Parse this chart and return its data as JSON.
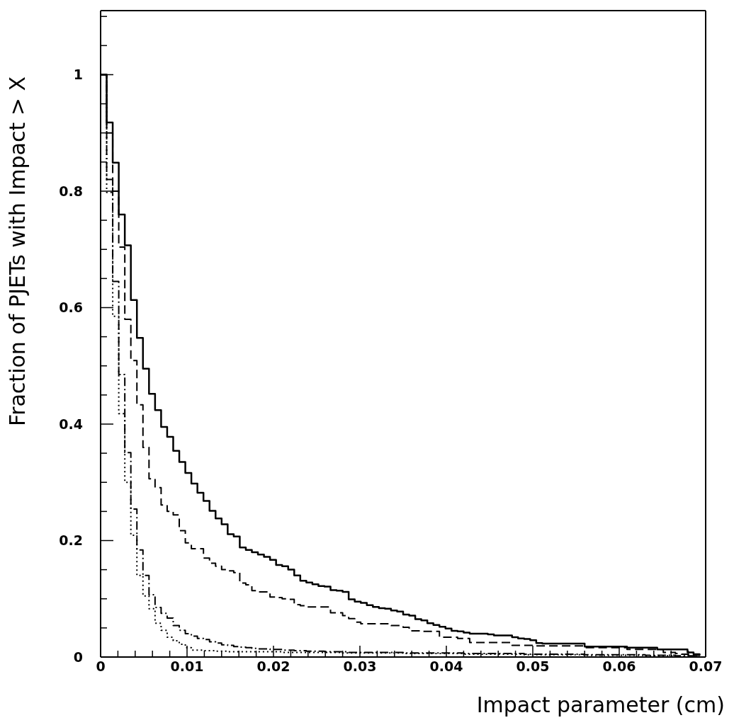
{
  "chart_data": {
    "type": "step",
    "xlabel": "Impact parameter (cm)",
    "ylabel": "Fraction of PJETs with Impact > X",
    "xlim": [
      0,
      0.07
    ],
    "ylim": [
      0,
      1.11
    ],
    "xticks": [
      0,
      {
        "value": 0.002,
        "label": null
      },
      {
        "value": 0.004,
        "label": null
      },
      {
        "value": 0.006,
        "label": null
      },
      {
        "value": 0.008,
        "label": null
      },
      0.01,
      {
        "value": 0.012,
        "label": null
      },
      {
        "value": 0.014,
        "label": null
      },
      {
        "value": 0.016,
        "label": null
      },
      {
        "value": 0.018,
        "label": null
      },
      0.02,
      {
        "value": 0.022,
        "label": null
      },
      {
        "value": 0.024,
        "label": null
      },
      {
        "value": 0.026,
        "label": null
      },
      {
        "value": 0.028,
        "label": null
      },
      0.03,
      {
        "value": 0.032,
        "label": null
      },
      {
        "value": 0.034,
        "label": null
      },
      {
        "value": 0.036,
        "label": null
      },
      {
        "value": 0.038,
        "label": null
      },
      0.04,
      {
        "value": 0.042,
        "label": null
      },
      {
        "value": 0.044,
        "label": null
      },
      {
        "value": 0.046,
        "label": null
      },
      {
        "value": 0.048,
        "label": null
      },
      0.05,
      {
        "value": 0.052,
        "label": null
      },
      {
        "value": 0.054,
        "label": null
      },
      {
        "value": 0.056,
        "label": null
      },
      {
        "value": 0.058,
        "label": null
      },
      0.06,
      {
        "value": 0.062,
        "label": null
      },
      {
        "value": 0.064,
        "label": null
      },
      {
        "value": 0.066,
        "label": null
      },
      {
        "value": 0.068,
        "label": null
      },
      0.07
    ],
    "yticks": [
      0,
      {
        "value": 0.05,
        "label": null
      },
      0.2,
      {
        "value": 0.1,
        "label": null
      },
      {
        "value": 0.15,
        "label": null
      },
      {
        "value": 0.25,
        "label": null
      },
      {
        "value": 0.3,
        "label": null
      },
      {
        "value": 0.35,
        "label": null
      },
      0.4,
      {
        "value": 0.45,
        "label": null
      },
      {
        "value": 0.5,
        "label": null
      },
      {
        "value": 0.55,
        "label": null
      },
      0.6,
      {
        "value": 0.65,
        "label": null
      },
      {
        "value": 0.7,
        "label": null
      },
      {
        "value": 0.75,
        "label": null
      },
      0.8,
      {
        "value": 0.85,
        "label": null
      },
      {
        "value": 0.9,
        "label": null
      },
      {
        "value": 0.95,
        "label": null
      },
      1,
      {
        "value": 1.05,
        "label": null
      },
      {
        "value": 1.1,
        "label": null
      }
    ],
    "grid": false,
    "x": [
      0,
      0.0007,
      0.0014,
      0.0021,
      0.0028,
      0.0035,
      0.0042,
      0.0049,
      0.0056,
      0.0063,
      0.007,
      0.0077,
      0.0084,
      0.0091,
      0.0098,
      0.0105,
      0.0112,
      0.0119,
      0.0126,
      0.0133,
      0.014,
      0.0147,
      0.0154,
      0.0161,
      0.0168,
      0.0175,
      0.0182,
      0.0189,
      0.0196,
      0.0203,
      0.021,
      0.0217,
      0.0224,
      0.0231,
      0.0238,
      0.0245,
      0.0252,
      0.0259,
      0.0266,
      0.0273,
      0.028,
      0.0287,
      0.0294,
      0.0301,
      0.0308,
      0.0315,
      0.0322,
      0.0329,
      0.0336,
      0.0343,
      0.035,
      0.0357,
      0.0364,
      0.0371,
      0.0378,
      0.0385,
      0.0392,
      0.0399,
      0.0406,
      0.0413,
      0.042,
      0.0427,
      0.0434,
      0.0441,
      0.0448,
      0.0455,
      0.0462,
      0.0469,
      0.0476,
      0.0483,
      0.049,
      0.0497,
      0.0504,
      0.0511,
      0.0518,
      0.0525,
      0.0532,
      0.0539,
      0.0546,
      0.0553,
      0.056,
      0.0567,
      0.0574,
      0.0581,
      0.0588,
      0.0595,
      0.0602,
      0.0609,
      0.0616,
      0.0623,
      0.063,
      0.0637,
      0.0644,
      0.0651,
      0.0658,
      0.0665,
      0.0672,
      0.0679,
      0.0686,
      0.0693
    ],
    "series": [
      {
        "color": "#000000",
        "line_style": "solid",
        "values": [
          1.0,
          0.918,
          0.849,
          0.76,
          0.707,
          0.613,
          0.548,
          0.495,
          0.452,
          0.424,
          0.395,
          0.378,
          0.354,
          0.335,
          0.316,
          0.298,
          0.282,
          0.268,
          0.251,
          0.238,
          0.228,
          0.211,
          0.207,
          0.188,
          0.184,
          0.18,
          0.176,
          0.172,
          0.167,
          0.158,
          0.156,
          0.15,
          0.14,
          0.131,
          0.128,
          0.125,
          0.122,
          0.121,
          0.115,
          0.114,
          0.112,
          0.099,
          0.095,
          0.093,
          0.089,
          0.086,
          0.084,
          0.083,
          0.08,
          0.078,
          0.073,
          0.071,
          0.065,
          0.063,
          0.058,
          0.055,
          0.052,
          0.049,
          0.045,
          0.044,
          0.042,
          0.04,
          0.04,
          0.04,
          0.039,
          0.037,
          0.037,
          0.037,
          0.034,
          0.032,
          0.031,
          0.029,
          0.024,
          0.023,
          0.023,
          0.023,
          0.023,
          0.023,
          0.023,
          0.023,
          0.018,
          0.018,
          0.018,
          0.018,
          0.018,
          0.018,
          0.018,
          0.016,
          0.016,
          0.016,
          0.016,
          0.016,
          0.013,
          0.013,
          0.013,
          0.013,
          0.013,
          0.008,
          0.005,
          0.003
        ]
      },
      {
        "color": "#000000",
        "line_style": "dashed",
        "values": [
          1.0,
          0.9,
          0.8,
          0.704,
          0.58,
          0.509,
          0.433,
          0.36,
          0.306,
          0.291,
          0.261,
          0.25,
          0.244,
          0.217,
          0.196,
          0.186,
          0.186,
          0.17,
          0.161,
          0.156,
          0.15,
          0.148,
          0.145,
          0.127,
          0.124,
          0.114,
          0.112,
          0.112,
          0.103,
          0.102,
          0.1,
          0.099,
          0.09,
          0.088,
          0.086,
          0.086,
          0.086,
          0.086,
          0.076,
          0.076,
          0.071,
          0.066,
          0.06,
          0.057,
          0.057,
          0.057,
          0.057,
          0.057,
          0.054,
          0.054,
          0.051,
          0.045,
          0.045,
          0.044,
          0.044,
          0.044,
          0.034,
          0.034,
          0.034,
          0.032,
          0.032,
          0.025,
          0.025,
          0.025,
          0.025,
          0.025,
          0.025,
          0.025,
          0.02,
          0.02,
          0.02,
          0.02,
          0.019,
          0.019,
          0.019,
          0.019,
          0.019,
          0.019,
          0.019,
          0.019,
          0.016,
          0.016,
          0.016,
          0.016,
          0.016,
          0.016,
          0.016,
          0.013,
          0.013,
          0.013,
          0.013,
          0.013,
          0.013,
          0.008,
          0.008,
          0.006,
          0.005,
          0.004,
          0.003,
          0.002
        ]
      },
      {
        "color": "#000000",
        "line_style": "dashdot",
        "values": [
          1.0,
          0.82,
          0.645,
          0.485,
          0.351,
          0.254,
          0.184,
          0.14,
          0.107,
          0.085,
          0.075,
          0.067,
          0.054,
          0.046,
          0.04,
          0.036,
          0.032,
          0.03,
          0.026,
          0.024,
          0.021,
          0.02,
          0.018,
          0.017,
          0.016,
          0.015,
          0.014,
          0.014,
          0.013,
          0.013,
          0.012,
          0.012,
          0.011,
          0.011,
          0.01,
          0.01,
          0.01,
          0.009,
          0.009,
          0.009,
          0.009,
          0.008,
          0.008,
          0.008,
          0.008,
          0.008,
          0.008,
          0.008,
          0.008,
          0.008,
          0.007,
          0.007,
          0.007,
          0.007,
          0.007,
          0.007,
          0.007,
          0.007,
          0.007,
          0.007,
          0.006,
          0.006,
          0.006,
          0.006,
          0.006,
          0.006,
          0.006,
          0.006,
          0.006,
          0.006,
          0.005,
          0.005,
          0.005,
          0.005,
          0.005,
          0.005,
          0.005,
          0.005,
          0.005,
          0.005,
          0.004,
          0.004,
          0.004,
          0.004,
          0.004,
          0.004,
          0.004,
          0.004,
          0.004,
          0.004,
          0.003,
          0.003,
          0.003,
          0.003,
          0.003,
          0.002,
          0.002,
          0.002,
          0.001,
          0.001
        ]
      },
      {
        "color": "#000000",
        "line_style": "dotted",
        "values": [
          1.0,
          0.798,
          0.585,
          0.418,
          0.3,
          0.209,
          0.14,
          0.105,
          0.083,
          0.058,
          0.046,
          0.034,
          0.028,
          0.022,
          0.016,
          0.012,
          0.012,
          0.011,
          0.011,
          0.01,
          0.01,
          0.009,
          0.009,
          0.009,
          0.009,
          0.009,
          0.009,
          0.009,
          0.009,
          0.009,
          0.008,
          0.008,
          0.008,
          0.008,
          0.008,
          0.008,
          0.008,
          0.008,
          0.008,
          0.008,
          0.007,
          0.007,
          0.007,
          0.007,
          0.007,
          0.007,
          0.007,
          0.007,
          0.007,
          0.007,
          0.006,
          0.006,
          0.006,
          0.006,
          0.006,
          0.006,
          0.006,
          0.006,
          0.006,
          0.006,
          0.005,
          0.005,
          0.005,
          0.005,
          0.005,
          0.005,
          0.005,
          0.005,
          0.005,
          0.005,
          0.004,
          0.004,
          0.004,
          0.004,
          0.004,
          0.004,
          0.004,
          0.004,
          0.004,
          0.004,
          0.003,
          0.003,
          0.003,
          0.003,
          0.003,
          0.003,
          0.003,
          0.003,
          0.003,
          0.003,
          0.002,
          0.002,
          0.002,
          0.002,
          0.002,
          0.001,
          0.001,
          0.001,
          0.001,
          0.001
        ]
      }
    ]
  }
}
